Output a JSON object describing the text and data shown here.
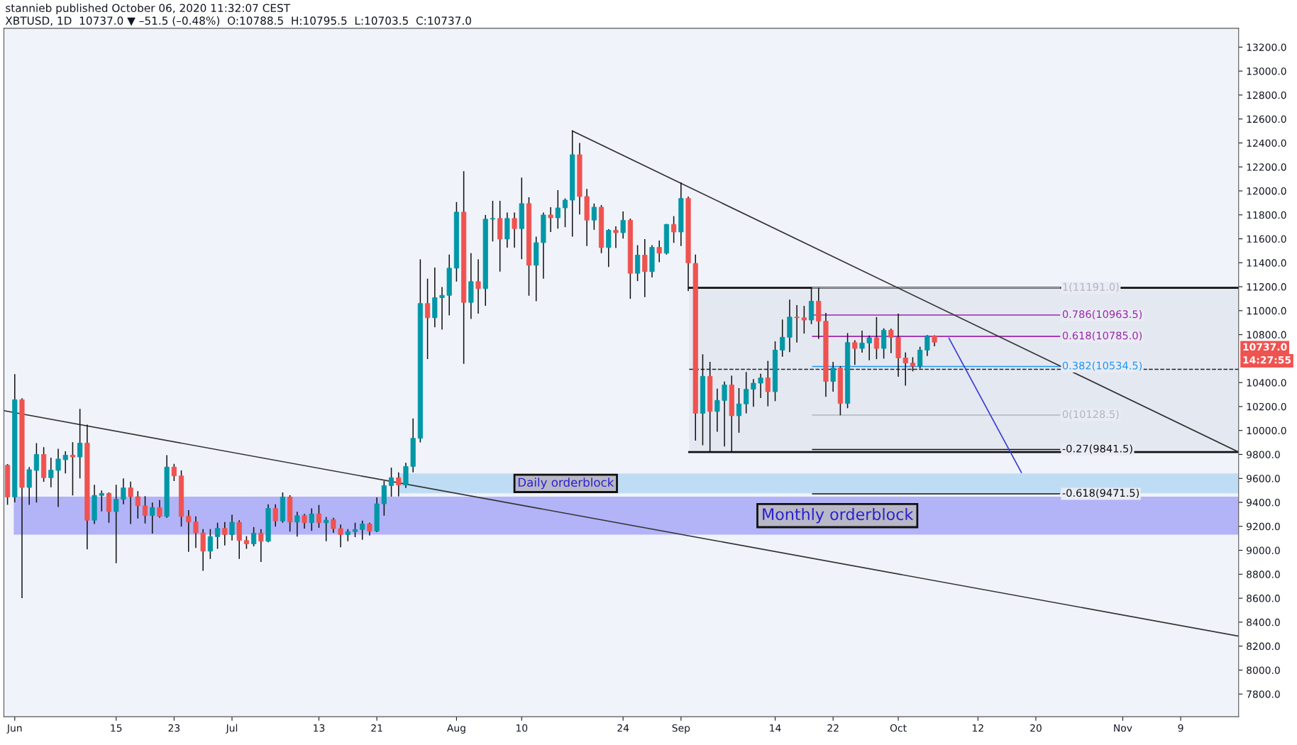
{
  "chart_data": {
    "type": "candlestick",
    "title": "stannieb published October 06, 2020 11:32:07 CEST",
    "subtitle": "XBTUSD, 1D  10737.0 ▼ –51.5 (–0.48%)  O:10788.5  H:10795.5  L:10703.5  C:10737.0",
    "colors": [
      "#ef5350",
      "#0097a7",
      "#ef5350",
      "#0097a7",
      "#0097a7",
      "#ef5350",
      "#0097a7",
      "#0097a7",
      "#0097a7",
      "#ef5350",
      "#0097a7",
      "#ef5350",
      "#0097a7",
      "#0097a7",
      "#ef5350",
      "#0097a7",
      "#0097a7",
      "#ef5350",
      "#ef5350",
      "#ef5350",
      "#0097a7",
      "#ef5350",
      "#0097a7",
      "#ef5350",
      "#ef5350",
      "#ef5350",
      "#ef5350",
      "#ef5350",
      "#0097a7",
      "#0097a7",
      "#ef5350",
      "#0097a7",
      "#ef5350",
      "#ef5350",
      "#0097a7",
      "#ef5350",
      "#0097a7",
      "#ef5350",
      "#0097a7",
      "#ef5350",
      "#0097a7",
      "#ef5350",
      "#0097a7",
      "#ef5350",
      "#0097a7",
      "#ef5350",
      "#ef5350",
      "#0097a7",
      "#0097a7",
      "#0097a7",
      "#ef5350",
      "#0097a7",
      "#0097a7",
      "#0097a7",
      "#ef5350",
      "#0097a7",
      "#0097a7",
      "#0097a7",
      "#ef5350",
      "#0097a7",
      "#0097a7",
      "#0097a7",
      "#0097a7",
      "#ef5350",
      "#0097a7",
      "#ef5350",
      "#0097a7",
      "#0097a7",
      "#ef5350",
      "#0097a7",
      "#ef5350",
      "#0097a7",
      "#ef5350",
      "#0097a7",
      "#0097a7",
      "#ef5350",
      "#0097a7",
      "#0097a7",
      "#0097a7",
      "#ef5350",
      "#ef5350",
      "#0097a7",
      "#ef5350",
      "#0097a7",
      "#ef5350",
      "#0097a7",
      "#ef5350",
      "#0097a7",
      "#ef5350",
      "#0097a7",
      "#ef5350",
      "#0097a7",
      "#ef5350",
      "#0097a7",
      "#ef5350",
      "#ef5350",
      "#0097a7",
      "#ef5350",
      "#0097a7",
      "#0097a7",
      "#ef5350",
      "#0097a7",
      "#0097a7",
      "#0097a7",
      "#0097a7",
      "#ef5350",
      "#0097a7",
      "#0097a7",
      "#0097a7",
      "#ef5350",
      "#ef5350",
      "#0097a7",
      "#ef5350",
      "#ef5350",
      "#0097a7",
      "#ef5350",
      "#0097a7",
      "#ef5350",
      "#0097a7",
      "#0097a7",
      "#ef5350",
      "#0097a7",
      "#ef5350",
      "#ef5350",
      "#ef5350",
      "#ef5350",
      "#0097a7",
      "#0097a7",
      "#ef5350"
    ],
    "x": [
      "2020-05-31",
      "2020-06-01",
      "2020-06-02",
      "2020-06-03",
      "2020-06-04",
      "2020-06-05",
      "2020-06-06",
      "2020-06-07",
      "2020-06-08",
      "2020-06-09",
      "2020-06-10",
      "2020-06-11",
      "2020-06-12",
      "2020-06-13",
      "2020-06-14",
      "2020-06-15",
      "2020-06-16",
      "2020-06-17",
      "2020-06-18",
      "2020-06-19",
      "2020-06-20",
      "2020-06-21",
      "2020-06-22",
      "2020-06-23",
      "2020-06-24",
      "2020-06-25",
      "2020-06-26",
      "2020-06-27",
      "2020-06-28",
      "2020-06-29",
      "2020-06-30",
      "2020-07-01",
      "2020-07-02",
      "2020-07-03",
      "2020-07-04",
      "2020-07-05",
      "2020-07-06",
      "2020-07-07",
      "2020-07-08",
      "2020-07-09",
      "2020-07-10",
      "2020-07-11",
      "2020-07-12",
      "2020-07-13",
      "2020-07-14",
      "2020-07-15",
      "2020-07-16",
      "2020-07-17",
      "2020-07-18",
      "2020-07-19",
      "2020-07-20",
      "2020-07-21",
      "2020-07-22",
      "2020-07-23",
      "2020-07-24",
      "2020-07-25",
      "2020-07-26",
      "2020-07-27",
      "2020-07-28",
      "2020-07-29",
      "2020-07-30",
      "2020-07-31",
      "2020-08-01",
      "2020-08-02",
      "2020-08-03",
      "2020-08-04",
      "2020-08-05",
      "2020-08-06",
      "2020-08-07",
      "2020-08-08",
      "2020-08-09",
      "2020-08-10",
      "2020-08-11",
      "2020-08-12",
      "2020-08-13",
      "2020-08-14",
      "2020-08-15",
      "2020-08-16",
      "2020-08-17",
      "2020-08-18",
      "2020-08-19",
      "2020-08-20",
      "2020-08-21",
      "2020-08-22",
      "2020-08-23",
      "2020-08-24",
      "2020-08-25",
      "2020-08-26",
      "2020-08-27",
      "2020-08-28",
      "2020-08-29",
      "2020-08-30",
      "2020-08-31",
      "2020-09-01",
      "2020-09-02",
      "2020-09-03",
      "2020-09-04",
      "2020-09-05",
      "2020-09-06",
      "2020-09-07",
      "2020-09-08",
      "2020-09-09",
      "2020-09-10",
      "2020-09-11",
      "2020-09-12",
      "2020-09-13",
      "2020-09-14",
      "2020-09-15",
      "2020-09-16",
      "2020-09-17",
      "2020-09-18",
      "2020-09-19",
      "2020-09-20",
      "2020-09-21",
      "2020-09-22",
      "2020-09-23",
      "2020-09-24",
      "2020-09-25",
      "2020-09-26",
      "2020-09-27",
      "2020-09-28",
      "2020-09-29",
      "2020-09-30",
      "2020-10-01",
      "2020-10-02",
      "2020-10-03",
      "2020-10-04",
      "2020-10-05",
      "2020-10-06"
    ],
    "ohlc": [
      [
        9710,
        9720,
        9380,
        9445
      ],
      [
        9445,
        10470,
        9400,
        10257
      ],
      [
        10257,
        10270,
        8600,
        9525
      ],
      [
        9525,
        9695,
        9380,
        9673
      ],
      [
        9667,
        9895,
        9399,
        9800
      ],
      [
        9800,
        9860,
        9572,
        9606
      ],
      [
        9606,
        9773,
        9526,
        9669
      ],
      [
        9667,
        9847,
        9361,
        9762
      ],
      [
        9756,
        9826,
        9642,
        9794
      ],
      [
        9794,
        9902,
        9458,
        9779
      ],
      [
        9779,
        10181,
        9600,
        9895
      ],
      [
        9895,
        10048,
        9008,
        9251
      ],
      [
        9251,
        9547,
        9219,
        9458
      ],
      [
        9458,
        9500,
        9325,
        9475
      ],
      [
        9475,
        9483,
        9230,
        9323
      ],
      [
        9323,
        9547,
        8892,
        9426
      ],
      [
        9426,
        9600,
        9384,
        9521
      ],
      [
        9521,
        9574,
        9219,
        9448
      ],
      [
        9448,
        9494,
        9266,
        9371
      ],
      [
        9371,
        9452,
        9224,
        9291
      ],
      [
        9291,
        9399,
        9139,
        9357
      ],
      [
        9357,
        9420,
        9272,
        9283
      ],
      [
        9283,
        9794,
        9272,
        9695
      ],
      [
        9695,
        9722,
        9578,
        9621
      ],
      [
        9621,
        9667,
        9198,
        9283
      ],
      [
        9283,
        9335,
        8987,
        9236
      ],
      [
        9236,
        9283,
        9019,
        9145
      ],
      [
        9145,
        9177,
        8828,
        8993
      ],
      [
        8993,
        9177,
        8928,
        9114
      ],
      [
        9114,
        9230,
        9012,
        9183
      ],
      [
        9183,
        9236,
        9040,
        9131
      ],
      [
        9131,
        9297,
        9082,
        9234
      ],
      [
        9234,
        9251,
        8928,
        9082
      ],
      [
        9082,
        9118,
        9012,
        9054
      ],
      [
        9054,
        9194,
        9033,
        9143
      ],
      [
        9143,
        9177,
        8902,
        9076
      ],
      [
        9076,
        9384,
        9067,
        9350
      ],
      [
        9350,
        9384,
        9198,
        9245
      ],
      [
        9245,
        9483,
        9230,
        9445
      ],
      [
        9445,
        9460,
        9156,
        9236
      ],
      [
        9236,
        9321,
        9114,
        9289
      ],
      [
        9289,
        9304,
        9181,
        9230
      ],
      [
        9230,
        9350,
        9162,
        9304
      ],
      [
        9304,
        9378,
        9188,
        9230
      ],
      [
        9230,
        9278,
        9076,
        9251
      ],
      [
        9257,
        9272,
        9145,
        9181
      ],
      [
        9181,
        9215,
        9025,
        9131
      ],
      [
        9131,
        9177,
        9076,
        9156
      ],
      [
        9156,
        9230,
        9110,
        9173
      ],
      [
        9173,
        9247,
        9088,
        9219
      ],
      [
        9219,
        9230,
        9124,
        9160
      ],
      [
        9160,
        9441,
        9152,
        9388
      ],
      [
        9388,
        9578,
        9289,
        9540
      ],
      [
        9540,
        9690,
        9448,
        9606
      ],
      [
        9606,
        9650,
        9450,
        9545
      ],
      [
        9545,
        9730,
        9520,
        9700
      ],
      [
        9700,
        10100,
        9650,
        9935
      ],
      [
        9935,
        11428,
        9900,
        11060
      ],
      [
        11060,
        11267,
        10596,
        10941
      ],
      [
        10941,
        11361,
        10862,
        11109
      ],
      [
        11109,
        11198,
        10843,
        11128
      ],
      [
        11128,
        11468,
        10961,
        11355
      ],
      [
        11355,
        11907,
        11243,
        11823
      ],
      [
        11823,
        12164,
        10557,
        11069
      ],
      [
        11069,
        11480,
        10931,
        11243
      ],
      [
        11243,
        11428,
        10975,
        11184
      ],
      [
        11184,
        11799,
        11040,
        11764
      ],
      [
        11764,
        11917,
        11578,
        11770
      ],
      [
        11770,
        11917,
        11326,
        11598
      ],
      [
        11598,
        11819,
        11527,
        11770
      ],
      [
        11770,
        11819,
        11527,
        11685
      ],
      [
        11685,
        12111,
        11430,
        11894
      ],
      [
        11894,
        11947,
        11125,
        11379
      ],
      [
        11379,
        11618,
        11079,
        11568
      ],
      [
        11568,
        11819,
        11267,
        11799
      ],
      [
        11799,
        11864,
        11657,
        11775
      ],
      [
        11775,
        12006,
        11685,
        11858
      ],
      [
        11858,
        11937,
        11697,
        11923
      ],
      [
        11923,
        12505,
        11618,
        12302
      ],
      [
        12302,
        12400,
        11803,
        11953
      ],
      [
        11953,
        12016,
        11539,
        11756
      ],
      [
        11756,
        11894,
        11675,
        11864
      ],
      [
        11864,
        11882,
        11480,
        11527
      ],
      [
        11527,
        11681,
        11365,
        11671
      ],
      [
        11671,
        11704,
        11523,
        11651
      ],
      [
        11651,
        11829,
        11602,
        11754
      ],
      [
        11754,
        11769,
        11099,
        11312
      ],
      [
        11312,
        11547,
        11247,
        11464
      ],
      [
        11464,
        11598,
        11113,
        11326
      ],
      [
        11326,
        11547,
        11277,
        11529
      ],
      [
        11529,
        11586,
        11405,
        11480
      ],
      [
        11480,
        11724,
        11468,
        11720
      ],
      [
        11720,
        11789,
        11566,
        11657
      ],
      [
        11657,
        12071,
        11539,
        11937
      ],
      [
        11937,
        11953,
        11164,
        11399
      ],
      [
        11395,
        11468,
        9916,
        10143
      ],
      [
        10143,
        10636,
        9877,
        10452
      ],
      [
        10452,
        10573,
        9817,
        10159
      ],
      [
        10159,
        10350,
        9989,
        10251
      ],
      [
        10251,
        10409,
        9867,
        10380
      ],
      [
        10380,
        10458,
        9817,
        10123
      ],
      [
        10123,
        10354,
        9981,
        10222
      ],
      [
        10222,
        10488,
        10143,
        10344
      ],
      [
        10344,
        10429,
        10198,
        10395
      ],
      [
        10395,
        10474,
        10271,
        10439
      ],
      [
        10439,
        10581,
        10202,
        10324
      ],
      [
        10324,
        10744,
        10245,
        10671
      ],
      [
        10671,
        10926,
        10616,
        10778
      ],
      [
        10778,
        11093,
        10655,
        10947
      ],
      [
        10947,
        11046,
        10734,
        10941
      ],
      [
        10941,
        11040,
        10809,
        10922
      ],
      [
        10922,
        11188,
        10888,
        11079
      ],
      [
        11079,
        11191,
        10764,
        10912
      ],
      [
        10912,
        10981,
        10281,
        10409
      ],
      [
        10409,
        10573,
        10324,
        10521
      ],
      [
        10521,
        10537,
        10127,
        10226
      ],
      [
        10226,
        10813,
        10186,
        10734
      ],
      [
        10734,
        10754,
        10547,
        10685
      ],
      [
        10685,
        10833,
        10650,
        10730
      ],
      [
        10730,
        10793,
        10586,
        10774
      ],
      [
        10774,
        10947,
        10596,
        10685
      ],
      [
        10685,
        10853,
        10600,
        10837
      ],
      [
        10837,
        10849,
        10646,
        10778
      ],
      [
        10778,
        10975,
        10448,
        10606
      ],
      [
        10606,
        10652,
        10375,
        10563
      ],
      [
        10563,
        10612,
        10494,
        10537
      ],
      [
        10537,
        10699,
        10517,
        10671
      ],
      [
        10671,
        10797,
        10622,
        10790
      ],
      [
        10788.5,
        10795.5,
        10703.5,
        10737.0
      ]
    ],
    "series": [
      {
        "type": "line",
        "color": "#333333",
        "x": [
          "2020-08-17",
          "2020-11-17"
        ],
        "values": [
          12500,
          9820
        ]
      },
      {
        "type": "line",
        "color": "#333333",
        "x": [
          "2020-05-30T12:00",
          "2020-11-17"
        ],
        "values": [
          10165,
          8283
        ]
      },
      {
        "type": "line",
        "color": "#3a3ad6",
        "x": [
          "2020-10-08",
          "2020-10-18"
        ],
        "values": [
          10770,
          9650
        ]
      }
    ],
    "ref_lines": [
      {
        "axis": "y",
        "value": 11191,
        "color": "#111111"
      },
      {
        "axis": "y",
        "value": 9820,
        "color": "#111111"
      },
      {
        "axis": "y",
        "value": 10510,
        "color": "#222222",
        "line_style": "dashed"
      },
      {
        "axis": "y",
        "value": 11191,
        "label": "1(11191.0)",
        "color": "#b2b5be"
      },
      {
        "axis": "y",
        "value": 10963.5,
        "label": "0.786(10963.5)",
        "color": "#9c27b0"
      },
      {
        "axis": "y",
        "value": 10785.0,
        "label": "0.618(10785.0)",
        "color": "#9c27b0"
      },
      {
        "axis": "y",
        "value": 10534.5,
        "label": "0.382(10534.5)",
        "color": "#2196f3"
      },
      {
        "axis": "y",
        "value": 10128.5,
        "label": "0(10128.5)",
        "color": "#b2b5be"
      },
      {
        "axis": "y",
        "value": 9841.5,
        "label": "-0.27(9841.5)",
        "color": "#111111"
      },
      {
        "axis": "y",
        "value": 9471.5,
        "label": "-0.618(9471.5)",
        "color": "#111111"
      }
    ],
    "bands": [
      {
        "axis": "y",
        "from": 9820,
        "to": 11191,
        "color": "#e4e8f1"
      },
      {
        "axis": "y",
        "from": 9476,
        "to": 9641,
        "label": "Daily orderblock",
        "color": "#bfdcf5"
      },
      {
        "axis": "y",
        "from": 9131,
        "to": 9448,
        "label": "Monthly orderblock",
        "color": "#b3b3f7"
      }
    ],
    "annotations": [
      "10737.0",
      "14:27:55"
    ],
    "xlim": [
      "2020-05-30T12:00",
      "2020-11-17"
    ],
    "xticks": [
      {
        "value": "2020-06-01",
        "label": "Jun"
      },
      {
        "value": "2020-06-15",
        "label": "15"
      },
      {
        "value": "2020-06-23",
        "label": "23"
      },
      {
        "value": "2020-07-01",
        "label": "Jul"
      },
      {
        "value": "2020-07-13",
        "label": "13"
      },
      {
        "value": "2020-07-21",
        "label": "21"
      },
      {
        "value": "2020-08-01",
        "label": "Aug"
      },
      {
        "value": "2020-08-10",
        "label": "10"
      },
      {
        "value": "2020-08-24",
        "label": "24"
      },
      {
        "value": "2020-09-01",
        "label": "Sep"
      },
      {
        "value": "2020-09-14",
        "label": "14"
      },
      {
        "value": "2020-09-22",
        "label": "22"
      },
      {
        "value": "2020-10-01",
        "label": "Oct"
      },
      {
        "value": "2020-10-12",
        "label": "12"
      },
      {
        "value": "2020-10-20",
        "label": "20"
      },
      {
        "value": "2020-11-01",
        "label": "Nov"
      },
      {
        "value": "2020-11-09",
        "label": "9"
      }
    ],
    "ylim": [
      7611,
      13357
    ],
    "yticks": [
      {
        "value": 7800,
        "label": "7800.0"
      },
      {
        "value": 8000,
        "label": "8000.0"
      },
      {
        "value": 8200,
        "label": "8200.0"
      },
      {
        "value": 8400,
        "label": "8400.0"
      },
      {
        "value": 8600,
        "label": "8600.0"
      },
      {
        "value": 8800,
        "label": "8800.0"
      },
      {
        "value": 9000,
        "label": "9000.0"
      },
      {
        "value": 9200,
        "label": "9200.0"
      },
      {
        "value": 9400,
        "label": "9400.0"
      },
      {
        "value": 9600,
        "label": "9600.0"
      },
      {
        "value": 9800,
        "label": "9800.0"
      },
      {
        "value": 10000,
        "label": "10000.0"
      },
      {
        "value": 10200,
        "label": "10200.0"
      },
      {
        "value": 10400,
        "label": "10400.0"
      },
      {
        "value": 10800,
        "label": "10800.0"
      },
      {
        "value": 11000,
        "label": "11000.0"
      },
      {
        "value": 11200,
        "label": "11200.0"
      },
      {
        "value": 11400,
        "label": "11400.0"
      },
      {
        "value": 11600,
        "label": "11600.0"
      },
      {
        "value": 11800,
        "label": "11800.0"
      },
      {
        "value": 12000,
        "label": "12000.0"
      },
      {
        "value": 12200,
        "label": "12200.0"
      },
      {
        "value": 12400,
        "label": "12400.0"
      },
      {
        "value": 12600,
        "label": "12600.0"
      },
      {
        "value": 12800,
        "label": "12800.0"
      },
      {
        "value": 13000,
        "label": "13000.0"
      },
      {
        "value": 13200,
        "label": "13200.0"
      }
    ],
    "grid": false
  }
}
